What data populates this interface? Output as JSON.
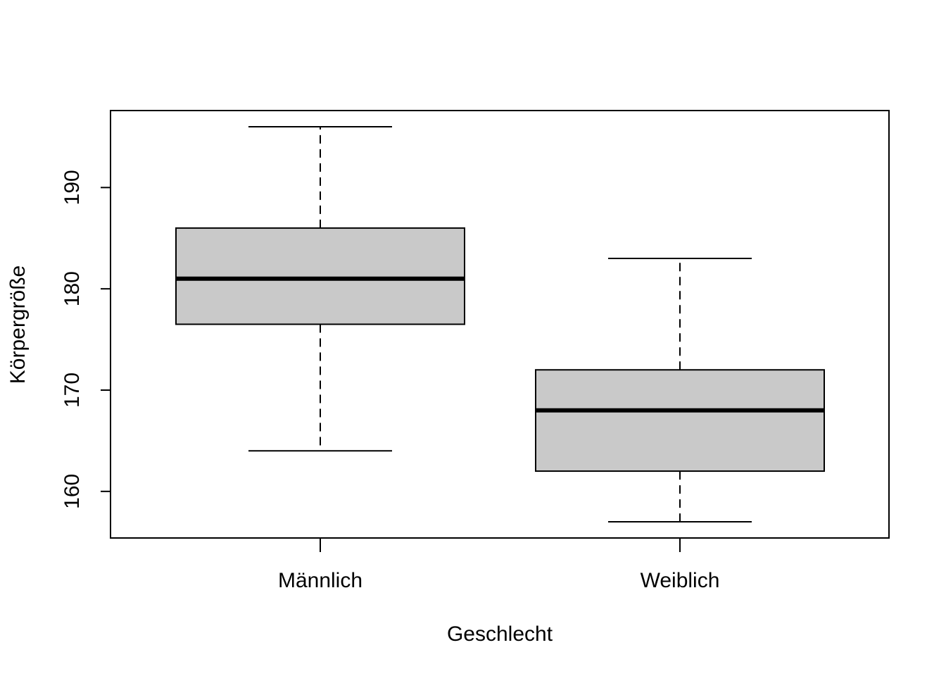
{
  "chart_data": {
    "type": "boxplot",
    "title": "",
    "xlabel": "Geschlecht",
    "ylabel": "Körpergröße",
    "categories": [
      "Männlich",
      "Weiblich"
    ],
    "boxes": [
      {
        "category": "Männlich",
        "whisker_low": 164,
        "q1": 176.5,
        "median": 181,
        "q3": 186,
        "whisker_high": 196
      },
      {
        "category": "Weiblich",
        "whisker_low": 157,
        "q1": 162,
        "median": 168,
        "q3": 172,
        "whisker_high": 183
      }
    ],
    "yticks": [
      160,
      170,
      180,
      190
    ],
    "ylim": [
      155.4,
      197.6
    ],
    "grid": false,
    "colors": {
      "box_fill": "#c9c9c9",
      "stroke": "#000000",
      "background": "#ffffff"
    }
  }
}
